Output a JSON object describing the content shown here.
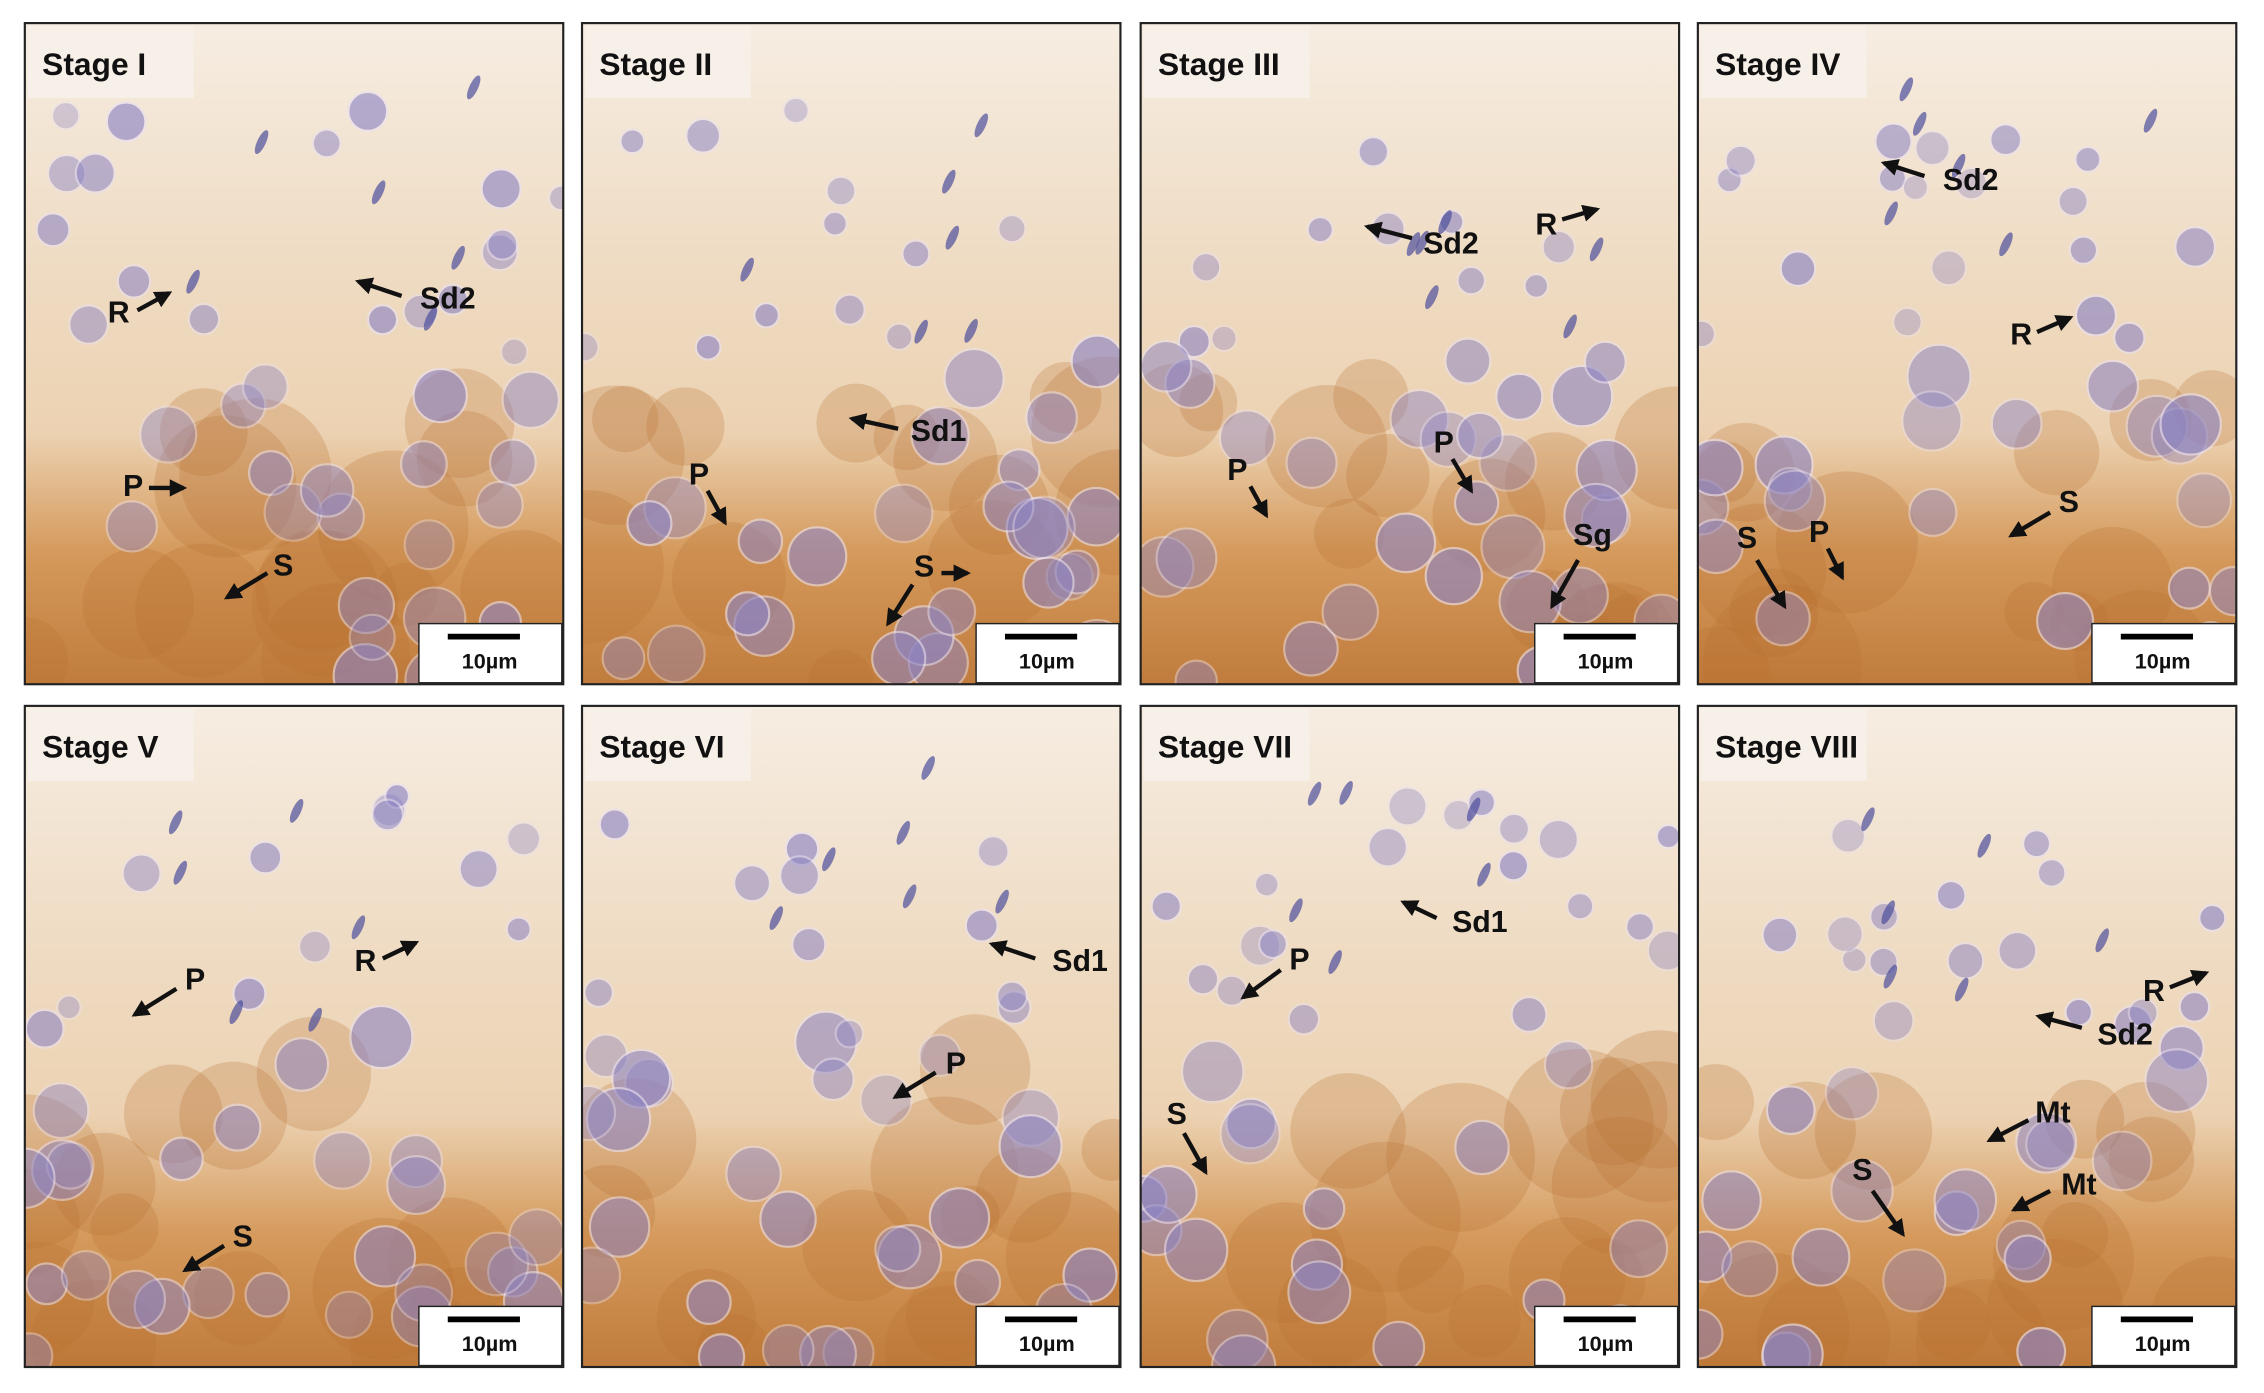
{
  "panels": [
    {
      "title": "Stage I",
      "scale_bar": "10µm",
      "labels": [
        "Sd2",
        "R",
        "P",
        "S"
      ]
    },
    {
      "title": "Stage II",
      "scale_bar": "10µm",
      "labels": [
        "Sd1",
        "P",
        "S"
      ]
    },
    {
      "title": "Stage III",
      "scale_bar": "10µm",
      "labels": [
        "Sd2",
        "R",
        "P",
        "P",
        "Sg"
      ]
    },
    {
      "title": "Stage IV",
      "scale_bar": "10µm",
      "labels": [
        "Sd2",
        "R",
        "S",
        "S",
        "P"
      ]
    },
    {
      "title": "Stage V",
      "scale_bar": "10µm",
      "labels": [
        "P",
        "R",
        "S"
      ]
    },
    {
      "title": "Stage VI",
      "scale_bar": "10µm",
      "labels": [
        "Sd1",
        "P"
      ]
    },
    {
      "title": "Stage VII",
      "scale_bar": "10µm",
      "labels": [
        "Sd1",
        "P",
        "S"
      ]
    },
    {
      "title": "Stage VIII",
      "scale_bar": "10µm",
      "labels": [
        "R",
        "Sd2",
        "Mt",
        "Mt",
        "S"
      ]
    }
  ]
}
